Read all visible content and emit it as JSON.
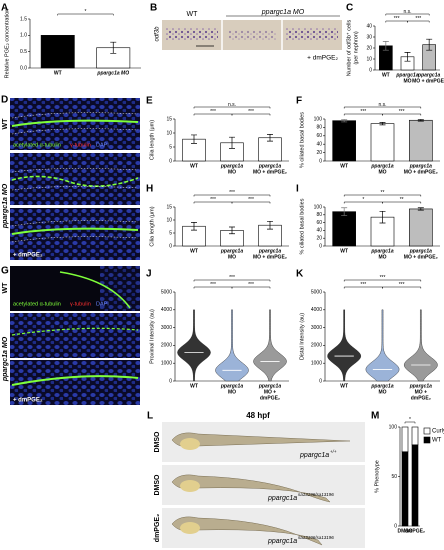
{
  "panels": {
    "A": {
      "letter": "A",
      "type": "bar",
      "ylabel": [
        "Relative PGE₂ concentration"
      ],
      "categories": [
        [
          "WT"
        ],
        [
          "ppargc1a MO"
        ]
      ],
      "values": [
        1.0,
        0.62
      ],
      "errors": [
        0,
        0.17
      ],
      "colors": [
        "#000000",
        "#ffffff"
      ],
      "ylim": [
        0,
        1.5
      ],
      "yticks": [
        {
          "value": 0,
          "label": "0.0"
        },
        {
          "value": 0.5,
          "label": "0.5"
        },
        {
          "value": 1,
          "label": "1.0"
        },
        {
          "value": 1.5,
          "label": "1.5"
        }
      ],
      "sig": [
        "*"
      ]
    },
    "B": {
      "letter": "B",
      "wt": "WT",
      "mo": "ppargc1a MO",
      "gene": "odf3b",
      "treat": "+ dmPGE₂"
    },
    "C": {
      "letter": "C",
      "type": "bar",
      "ylabel": [
        "Number of odf3b⁺ cells",
        "(per nephron)"
      ],
      "categories": [
        [
          "WT"
        ],
        [
          "ppargc1a",
          "MO"
        ],
        [
          "ppargc1a",
          "MO + dmPGE₂"
        ]
      ],
      "values": [
        22,
        12,
        23
      ],
      "errors": [
        4,
        4,
        5
      ],
      "colors": [
        "#000000",
        "#ffffff",
        "#bdbdbd"
      ],
      "ylim": [
        0,
        40
      ],
      "yticks": [
        0,
        10,
        20,
        30,
        40
      ],
      "sig": [
        "n.s.",
        "***",
        "***"
      ]
    },
    "D": {
      "letter": "D",
      "wt": "WT",
      "mo": "ppargc1a MO",
      "treat": "+ dmPGE₂",
      "stain": [
        "acetylated α-tubulin",
        "γ-tubulin",
        "DAPI"
      ]
    },
    "E": {
      "letter": "E",
      "type": "bar",
      "ylabel": [
        "Cilia length (μm)"
      ],
      "categories": [
        [
          "WT"
        ],
        [
          "ppargc1a",
          "MO"
        ],
        [
          "ppargc1a",
          "MO + dmPGE₂"
        ]
      ],
      "values": [
        7.8,
        6.5,
        8.3
      ],
      "errors": [
        1.5,
        2,
        1.2
      ],
      "colors": [
        "#ffffff",
        "#ffffff",
        "#ffffff"
      ],
      "ylim": [
        0,
        15
      ],
      "yticks": [
        0,
        5,
        10,
        15
      ],
      "sig": [
        "n.s.",
        "***",
        "***"
      ]
    },
    "F": {
      "letter": "F",
      "type": "bar",
      "ylabel": [
        "% ciliated basal bodies"
      ],
      "categories": [
        [
          "WT"
        ],
        [
          "ppargc1a",
          "MO"
        ],
        [
          "ppargc1a",
          "MO + dmPGE₂"
        ]
      ],
      "values": [
        96,
        89,
        97
      ],
      "errors": [
        3,
        3,
        2
      ],
      "colors": [
        "#000000",
        "#ffffff",
        "#bdbdbd"
      ],
      "ylim": [
        0,
        100
      ],
      "yticks": [
        0,
        20,
        40,
        60,
        80,
        100
      ],
      "sig": [
        "n.s.",
        "***",
        "***"
      ]
    },
    "G": {
      "letter": "G",
      "wt": "WT",
      "mo": "ppargc1a MO",
      "treat": "+ dmPGE₂",
      "stain": [
        "acetylated α-tubulin",
        "γ-tubulin",
        "DAPI"
      ]
    },
    "H": {
      "letter": "H",
      "type": "bar",
      "ylabel": [
        "Cilia length (μm)"
      ],
      "categories": [
        [
          "WT"
        ],
        [
          "ppargc1a",
          "MO"
        ],
        [
          "ppargc1a",
          "MO + dmPGE₂"
        ]
      ],
      "values": [
        7.6,
        6,
        8
      ],
      "errors": [
        1.5,
        1.3,
        1.5
      ],
      "colors": [
        "#ffffff",
        "#ffffff",
        "#ffffff"
      ],
      "ylim": [
        0,
        15
      ],
      "yticks": [
        0,
        5,
        10,
        15
      ],
      "sig": [
        "***",
        "***",
        "***"
      ]
    },
    "I": {
      "letter": "I",
      "type": "bar",
      "ylabel": [
        "% ciliated basal bodies"
      ],
      "categories": [
        [
          "WT"
        ],
        [
          "ppargc1a",
          "MO"
        ],
        [
          "ppargc1a",
          "MO + dmPGE₂"
        ]
      ],
      "values": [
        88,
        74,
        95
      ],
      "errors": [
        10,
        15,
        3
      ],
      "colors": [
        "#000000",
        "#ffffff",
        "#bdbdbd"
      ],
      "ylim": [
        0,
        100
      ],
      "yticks": [
        0,
        20,
        40,
        60,
        80,
        100
      ],
      "sig": [
        "**",
        "*",
        "**"
      ]
    },
    "J": {
      "letter": "J",
      "type": "violin",
      "ylabel": [
        "Proximal Intensity (au)"
      ],
      "categories": [
        [
          "WT"
        ],
        [
          "ppargc1a",
          "MO"
        ],
        [
          "ppargc1a",
          "MO +",
          "dmPGE₂"
        ]
      ],
      "values": [
        1600,
        600,
        1100
      ],
      "colors": [
        "#333333",
        "#9bb3d8",
        "#9a9a9a"
      ],
      "ylim": [
        0,
        5000
      ],
      "yticks": [
        0,
        1000,
        2000,
        3000,
        4000,
        5000
      ],
      "sig": [
        "***",
        "***",
        "***"
      ]
    },
    "K": {
      "letter": "K",
      "type": "violin",
      "ylabel": [
        "Distal Intensity (au)"
      ],
      "categories": [
        [
          "WT"
        ],
        [
          "ppargc1a",
          "MO"
        ],
        [
          "ppargc1a",
          "MO +",
          "dmPGE₂"
        ]
      ],
      "values": [
        1400,
        650,
        900
      ],
      "colors": [
        "#333333",
        "#9bb3d8",
        "#9a9a9a"
      ],
      "ylim": [
        0,
        5000
      ],
      "yticks": [
        0,
        1000,
        2000,
        3000,
        4000,
        5000
      ],
      "sig": [
        "***",
        "***",
        "***"
      ]
    },
    "L": {
      "letter": "L",
      "stage": "48 hpf",
      "rows": [
        {
          "treat": "DMSO",
          "gene": "ppargc1a",
          "sup": "+/+"
        },
        {
          "treat": "DMSO",
          "gene": "ppargc1a",
          "sup": "sa13196/sa13196"
        },
        {
          "treat": "dmPGE₂",
          "gene": "ppargc1a",
          "sup": "sa13196/sa13196"
        }
      ]
    },
    "M": {
      "letter": "M",
      "type": "stacked",
      "ylabel": [
        "% Phenotype"
      ],
      "categories": [
        [
          "DMSO"
        ],
        [
          "dmPGE₂"
        ]
      ],
      "series": [
        {
          "name": "WT",
          "color": "#000000",
          "values": [
            75,
            82
          ]
        },
        {
          "name": "Curly",
          "color": "#ffffff",
          "values": [
            25,
            18
          ]
        }
      ],
      "ylim": [
        0,
        100
      ],
      "yticks": [
        0,
        50,
        100
      ],
      "sig": [
        "*"
      ]
    }
  }
}
